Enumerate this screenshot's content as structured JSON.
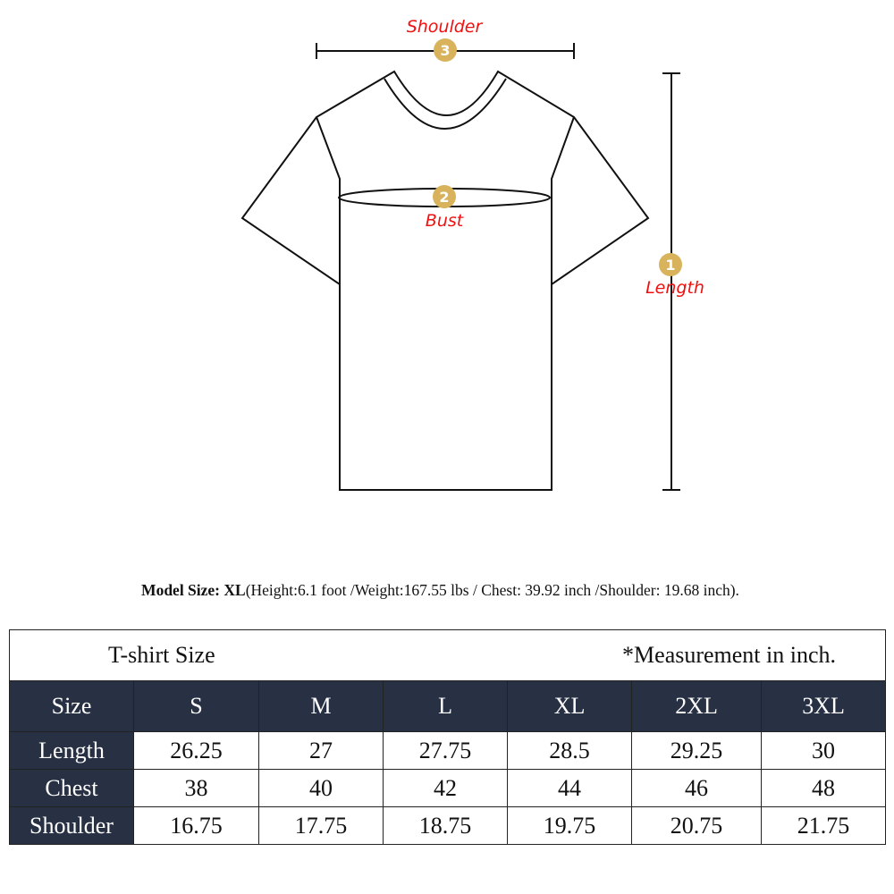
{
  "diagram": {
    "labels": {
      "shoulder": "Shoulder",
      "bust": "Bust",
      "length": "Length"
    },
    "badges": {
      "length": "1",
      "bust": "2",
      "shoulder": "3"
    },
    "colors": {
      "badge": "#d9b25c",
      "label": "#f01010",
      "header_bg": "#283044"
    }
  },
  "model_note": {
    "prefix": "Model Size: XL",
    "details": "(Height:6.1 foot /Weight:167.55 lbs / Chest: 39.92 inch /Shoulder: 19.68 inch)."
  },
  "table": {
    "title": "T-shirt Size",
    "unit_note": "*Measurement in inch.",
    "header": [
      "Size",
      "S",
      "M",
      "L",
      "XL",
      "2XL",
      "3XL"
    ],
    "rows": [
      [
        "Length",
        "26.25",
        "27",
        "27.75",
        "28.5",
        "29.25",
        "30"
      ],
      [
        "Chest",
        "38",
        "40",
        "42",
        "44",
        "46",
        "48"
      ],
      [
        "Shoulder",
        "16.75",
        "17.75",
        "18.75",
        "19.75",
        "20.75",
        "21.75"
      ]
    ]
  }
}
